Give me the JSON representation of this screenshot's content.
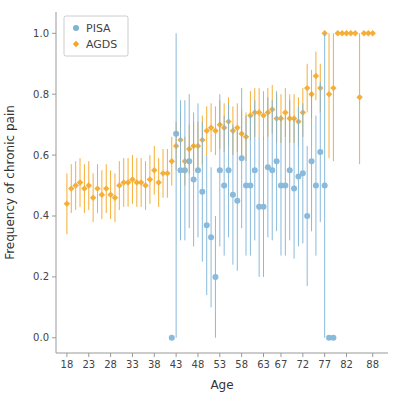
{
  "chart_data": {
    "type": "scatter",
    "xlabel": "Age",
    "ylabel": "Frequency of chronic pain",
    "series": [
      {
        "name": "AGDS",
        "color": "#f5a623",
        "marker": "diamond",
        "x": [
          18,
          19,
          20,
          21,
          22,
          23,
          24,
          25,
          26,
          27,
          28,
          29,
          30,
          31,
          32,
          33,
          34,
          35,
          36,
          37,
          38,
          39,
          40,
          41,
          42,
          43,
          44,
          45,
          46,
          47,
          48,
          49,
          50,
          51,
          52,
          53,
          54,
          55,
          56,
          57,
          58,
          59,
          60,
          61,
          62,
          63,
          64,
          65,
          66,
          67,
          68,
          69,
          70,
          71,
          72,
          73,
          74,
          75,
          76,
          77,
          78,
          79,
          80,
          81,
          82,
          83,
          84,
          85,
          86,
          87,
          88
        ],
        "values": [
          0.44,
          0.49,
          0.5,
          0.51,
          0.49,
          0.5,
          0.46,
          0.49,
          0.47,
          0.49,
          0.47,
          0.46,
          0.5,
          0.51,
          0.51,
          0.52,
          0.51,
          0.51,
          0.5,
          0.52,
          0.55,
          0.51,
          0.54,
          0.54,
          0.58,
          0.63,
          0.65,
          0.58,
          0.62,
          0.63,
          0.63,
          0.65,
          0.68,
          0.69,
          0.68,
          0.7,
          0.69,
          0.71,
          0.68,
          0.69,
          0.67,
          0.66,
          0.73,
          0.74,
          0.74,
          0.73,
          0.74,
          0.75,
          0.72,
          0.72,
          0.74,
          0.72,
          0.72,
          0.71,
          0.74,
          0.82,
          0.8,
          0.86,
          0.82,
          1.0,
          0.8,
          0.82,
          1.0,
          1.0,
          1.0,
          1.0,
          1.0,
          0.79,
          1.0,
          1.0,
          1.0
        ],
        "lower": [
          0.34,
          0.41,
          0.42,
          0.43,
          0.41,
          0.42,
          0.38,
          0.41,
          0.39,
          0.41,
          0.39,
          0.38,
          0.42,
          0.43,
          0.43,
          0.44,
          0.43,
          0.43,
          0.42,
          0.44,
          0.47,
          0.43,
          0.46,
          0.46,
          0.5,
          0.55,
          0.57,
          0.5,
          0.54,
          0.55,
          0.55,
          0.57,
          0.6,
          0.61,
          0.6,
          0.62,
          0.61,
          0.63,
          0.6,
          0.61,
          0.59,
          0.58,
          0.65,
          0.66,
          0.66,
          0.65,
          0.66,
          0.67,
          0.64,
          0.64,
          0.66,
          0.64,
          0.64,
          0.63,
          0.66,
          0.74,
          0.72,
          0.78,
          0.74,
          1.0,
          0.59,
          0.58,
          1.0,
          1.0,
          1.0,
          1.0,
          1.0,
          0.57,
          1.0,
          1.0,
          1.0
        ],
        "upper": [
          0.54,
          0.57,
          0.58,
          0.59,
          0.57,
          0.58,
          0.54,
          0.57,
          0.55,
          0.57,
          0.55,
          0.54,
          0.58,
          0.59,
          0.59,
          0.6,
          0.59,
          0.59,
          0.58,
          0.6,
          0.63,
          0.59,
          0.62,
          0.62,
          0.66,
          0.71,
          0.73,
          0.66,
          0.7,
          0.71,
          0.71,
          0.73,
          0.76,
          0.77,
          0.76,
          0.78,
          0.77,
          0.79,
          0.76,
          0.77,
          0.75,
          0.74,
          0.81,
          0.82,
          0.82,
          0.81,
          0.82,
          0.83,
          0.8,
          0.8,
          0.82,
          0.8,
          0.8,
          0.79,
          0.82,
          0.9,
          0.88,
          0.94,
          0.9,
          1.0,
          1.0,
          1.0,
          1.0,
          1.0,
          1.0,
          1.0,
          1.0,
          1.0,
          1.0,
          1.0,
          1.0
        ]
      },
      {
        "name": "PISA",
        "color": "#7eb3d8",
        "marker": "circle",
        "x": [
          42,
          43,
          44,
          45,
          46,
          47,
          48,
          49,
          50,
          51,
          52,
          53,
          54,
          55,
          56,
          57,
          58,
          59,
          60,
          61,
          62,
          63,
          64,
          65,
          66,
          67,
          68,
          69,
          70,
          71,
          72,
          73,
          74,
          75,
          76,
          77,
          78,
          79
        ],
        "values": [
          0.0,
          0.67,
          0.55,
          0.55,
          0.58,
          0.52,
          0.55,
          0.48,
          0.37,
          0.33,
          0.2,
          0.55,
          0.5,
          0.55,
          0.47,
          0.45,
          0.59,
          0.5,
          0.5,
          0.55,
          0.43,
          0.43,
          0.56,
          0.55,
          0.58,
          0.5,
          0.5,
          0.55,
          0.49,
          0.53,
          0.54,
          0.4,
          0.58,
          0.5,
          0.61,
          0.5,
          0.0,
          0.0
        ],
        "lower": [
          0.0,
          0.0,
          0.32,
          0.32,
          0.36,
          0.3,
          0.33,
          0.25,
          0.14,
          0.1,
          0.0,
          0.3,
          0.27,
          0.33,
          0.24,
          0.22,
          0.36,
          0.27,
          0.27,
          0.32,
          0.2,
          0.2,
          0.33,
          0.32,
          0.35,
          0.27,
          0.27,
          0.32,
          0.26,
          0.3,
          0.31,
          0.17,
          0.35,
          0.27,
          0.38,
          0.0,
          0.0,
          0.0
        ],
        "upper": [
          0.0,
          1.0,
          0.78,
          0.78,
          0.8,
          0.74,
          0.77,
          0.71,
          0.6,
          0.56,
          0.4,
          0.8,
          0.73,
          0.77,
          0.7,
          0.68,
          0.82,
          0.73,
          0.73,
          0.78,
          0.66,
          0.66,
          0.79,
          0.78,
          0.81,
          0.73,
          0.73,
          0.78,
          0.72,
          0.76,
          0.77,
          0.63,
          0.81,
          0.73,
          0.84,
          1.0,
          0.0,
          0.0
        ]
      }
    ],
    "xlim": [
      15.5,
      91.5
    ],
    "ylim": [
      -0.05,
      1.07
    ],
    "xticks": [
      18,
      23,
      28,
      33,
      38,
      43,
      48,
      53,
      58,
      63,
      67,
      72,
      77,
      82,
      88
    ],
    "yticks": [
      {
        "value": 0,
        "label": "0.0"
      },
      0.2,
      0.4,
      0.6,
      0.8,
      {
        "value": 1,
        "label": "1.0"
      }
    ],
    "grid": false,
    "legend": "upper left"
  }
}
